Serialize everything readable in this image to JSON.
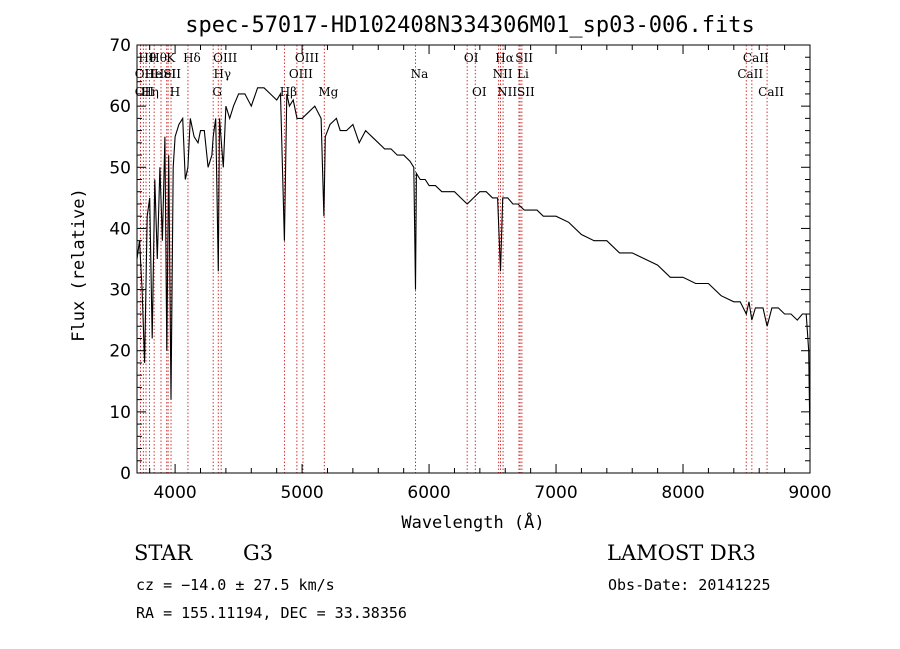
{
  "chart_data": {
    "type": "line",
    "title": "spec-57017-HD102408N334306M01_sp03-006.fits",
    "xlabel": "Wavelength (Å)",
    "ylabel": "Flux (relative)",
    "xlim": [
      3700,
      9000
    ],
    "ylim": [
      0,
      70
    ],
    "x_ticks": [
      4000,
      5000,
      6000,
      7000,
      8000,
      9000
    ],
    "x_tick_labels": [
      "4000",
      "5000",
      "6000",
      "7000",
      "8000",
      "9000"
    ],
    "y_ticks": [
      0,
      10,
      20,
      30,
      40,
      50,
      60,
      70
    ],
    "y_tick_labels": [
      "0",
      "10",
      "20",
      "30",
      "40",
      "50",
      "60",
      "70"
    ],
    "grid": false,
    "line_color": "#000000",
    "marker_color": "#cc2222",
    "series": [
      {
        "name": "flux",
        "x": [
          3700,
          3720,
          3740,
          3760,
          3780,
          3800,
          3820,
          3840,
          3860,
          3880,
          3900,
          3920,
          3935,
          3950,
          3968,
          3985,
          4000,
          4030,
          4060,
          4080,
          4101,
          4120,
          4150,
          4180,
          4200,
          4230,
          4260,
          4290,
          4300,
          4320,
          4340,
          4350,
          4380,
          4400,
          4430,
          4460,
          4500,
          4550,
          4600,
          4650,
          4700,
          4750,
          4800,
          4830,
          4861,
          4880,
          4900,
          4930,
          4960,
          5000,
          5050,
          5100,
          5150,
          5172,
          5183,
          5220,
          5270,
          5300,
          5350,
          5400,
          5450,
          5500,
          5550,
          5600,
          5650,
          5700,
          5750,
          5800,
          5850,
          5880,
          5893,
          5900,
          5930,
          5970,
          6000,
          6050,
          6100,
          6150,
          6200,
          6250,
          6300,
          6350,
          6400,
          6450,
          6500,
          6540,
          6563,
          6580,
          6620,
          6660,
          6700,
          6750,
          6800,
          6850,
          6900,
          6950,
          7000,
          7100,
          7200,
          7300,
          7400,
          7500,
          7600,
          7700,
          7800,
          7900,
          8000,
          8100,
          8200,
          8300,
          8400,
          8450,
          8498,
          8520,
          8542,
          8570,
          8600,
          8630,
          8662,
          8700,
          8750,
          8800,
          8850,
          8900,
          8940,
          8970,
          8990,
          9000
        ],
        "y": [
          35,
          38,
          30,
          18,
          42,
          45,
          22,
          48,
          35,
          50,
          38,
          55,
          20,
          52,
          12,
          50,
          55,
          57,
          58,
          48,
          50,
          58,
          55,
          54,
          56,
          56,
          50,
          52,
          55,
          58,
          33,
          58,
          50,
          60,
          58,
          60,
          62,
          62,
          60,
          63,
          63,
          62,
          61,
          62,
          38,
          62,
          60,
          61,
          58,
          58,
          59,
          60,
          58,
          42,
          55,
          57,
          58,
          56,
          56,
          57,
          54,
          56,
          55,
          54,
          53,
          53,
          52,
          52,
          51,
          50,
          30,
          49,
          48,
          48,
          47,
          47,
          46,
          46,
          46,
          45,
          44,
          45,
          46,
          46,
          45,
          45,
          33,
          45,
          45,
          44,
          44,
          43,
          43,
          43,
          42,
          42,
          42,
          41,
          39,
          38,
          38,
          36,
          36,
          35,
          34,
          32,
          32,
          31,
          31,
          29,
          28,
          28,
          26,
          28,
          25,
          27,
          27,
          27,
          24,
          27,
          27,
          26,
          26,
          25,
          26,
          26,
          20,
          5
        ]
      }
    ],
    "line_markers": [
      {
        "wavelength": 3727,
        "label": "OII",
        "row": 2
      },
      {
        "wavelength": 3727,
        "label": "OII",
        "row": 3
      },
      {
        "wavelength": 3750,
        "label": "Hθ",
        "row": 1
      },
      {
        "wavelength": 3771,
        "label": "Hη",
        "row": 3
      },
      {
        "wavelength": 3798,
        "label": "He",
        "row": 2
      },
      {
        "wavelength": 3835,
        "label": "Hθ",
        "row": 1
      },
      {
        "wavelength": 3889,
        "label": "HeI",
        "row": 2
      },
      {
        "wavelength": 3934,
        "label": "K",
        "row": 1
      },
      {
        "wavelength": 3945,
        "label": "SII",
        "row": 2
      },
      {
        "wavelength": 3968,
        "label": "H",
        "row": 3
      },
      {
        "wavelength": 4101,
        "label": "Hδ",
        "row": 1
      },
      {
        "wavelength": 4300,
        "label": "G",
        "row": 3
      },
      {
        "wavelength": 4340,
        "label": "Hγ",
        "row": 2
      },
      {
        "wavelength": 4363,
        "label": "OIII",
        "row": 1
      },
      {
        "wavelength": 4861,
        "label": "Hβ",
        "row": 3
      },
      {
        "wavelength": 4959,
        "label": "OIII",
        "row": 2
      },
      {
        "wavelength": 5007,
        "label": "OIII",
        "row": 1
      },
      {
        "wavelength": 5175,
        "label": "Mg",
        "row": 3
      },
      {
        "wavelength": 5893,
        "label": "Na",
        "row": 2
      },
      {
        "wavelength": 6300,
        "label": "OI",
        "row": 1
      },
      {
        "wavelength": 6364,
        "label": "OI",
        "row": 3
      },
      {
        "wavelength": 6548,
        "label": "NII",
        "row": 2
      },
      {
        "wavelength": 6563,
        "label": "Hα",
        "row": 1
      },
      {
        "wavelength": 6583,
        "label": "NII",
        "row": 3
      },
      {
        "wavelength": 6708,
        "label": "Li",
        "row": 2
      },
      {
        "wavelength": 6717,
        "label": "SII",
        "row": 1
      },
      {
        "wavelength": 6731,
        "label": "SII",
        "row": 3
      },
      {
        "wavelength": 8498,
        "label": "CaII",
        "row": 2
      },
      {
        "wavelength": 8542,
        "label": "CaII",
        "row": 1
      },
      {
        "wavelength": 8662,
        "label": "CaII",
        "row": 3
      }
    ]
  },
  "info": {
    "object_class": "STAR",
    "subclass": "G3",
    "survey": "LAMOST DR3",
    "cz": "cz = −14.0 ± 27.5 km/s",
    "obs_date": "Obs-Date: 20141225",
    "coords": "RA = 155.11194, DEC =  33.38356"
  }
}
